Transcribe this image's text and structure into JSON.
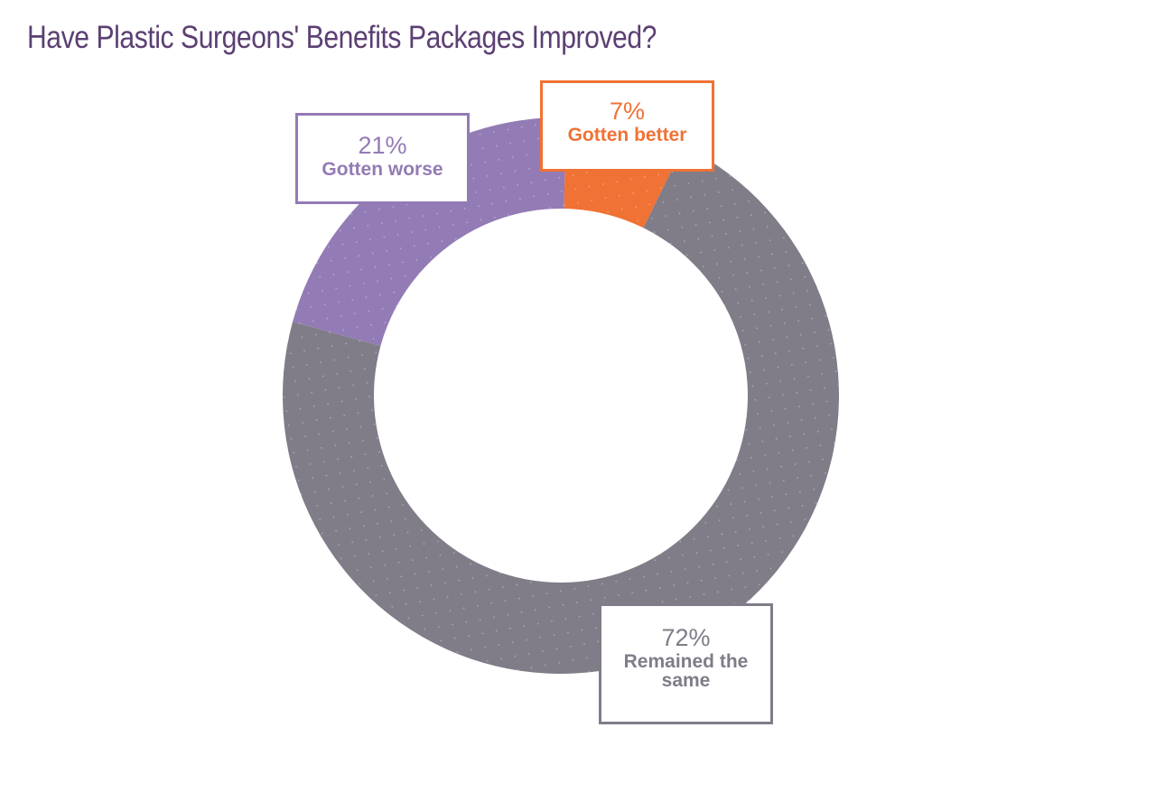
{
  "title": "Have Plastic Surgeons' Benefits Packages Improved?",
  "colors": {
    "title": "#5b3f73",
    "better": "#f07234",
    "worse": "#937bb5",
    "same": "#807c88"
  },
  "chart_data": {
    "type": "pie",
    "donut": true,
    "title": "Have Plastic Surgeons' Benefits Packages Improved?",
    "slices": [
      {
        "label": "Gotten better",
        "value": 7,
        "display": "7%",
        "color": "#f07234"
      },
      {
        "label": "Gotten worse",
        "value": 21,
        "display": "21%",
        "color": "#937bb5"
      },
      {
        "label": "Remained the same",
        "value": 72,
        "display": "72%",
        "color": "#807c88"
      }
    ]
  }
}
